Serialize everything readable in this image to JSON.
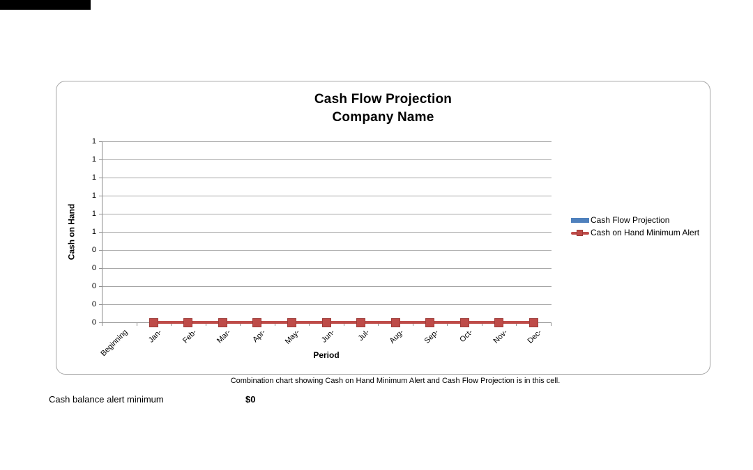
{
  "chart_card": {
    "title_line1": "Cash Flow Projection",
    "title_line2": "Company Name"
  },
  "chart_data": {
    "type": "combo-bar-line",
    "title": "Cash Flow Projection Company Name",
    "categories": [
      "Beginning",
      "Jan-",
      "Feb-",
      "Mar-",
      "Apr-",
      "May-",
      "Jun-",
      "Jul-",
      "Aug-",
      "Sep-",
      "Oct-",
      "Nov-",
      "Dec-"
    ],
    "series": [
      {
        "name": "Cash Flow Projection",
        "type": "bar",
        "color": "#4f81bd",
        "values": [
          0,
          0,
          0,
          0,
          0,
          0,
          0,
          0,
          0,
          0,
          0,
          0,
          0
        ]
      },
      {
        "name": "Cash on Hand Minimum Alert",
        "type": "line",
        "color": "#be4b48",
        "values": [
          null,
          0,
          0,
          0,
          0,
          0,
          0,
          0,
          0,
          0,
          0,
          0,
          0
        ]
      }
    ],
    "xlabel": "Period",
    "ylabel": "Cash on Hand",
    "ylim": [
      0,
      1
    ],
    "ytick_labels": [
      "1",
      "1",
      "1",
      "1",
      "1",
      "1",
      "0",
      "0",
      "0",
      "0",
      "0"
    ],
    "grid": "horizontal",
    "legend_position": "right"
  },
  "caption": "Combination chart showing Cash on Hand Minimum Alert and Cash Flow Projection is in this cell.",
  "footer": {
    "label": "Cash balance alert minimum",
    "value": "$0"
  }
}
